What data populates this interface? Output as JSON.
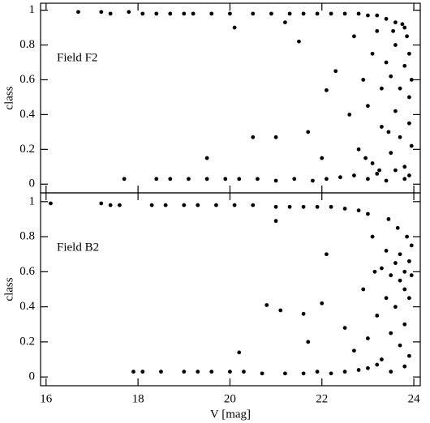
{
  "chart_data": [
    {
      "type": "scatter",
      "annotation": "Field F2",
      "ylabel": "class",
      "color": "#000000",
      "xlim": [
        15.88,
        24.14
      ],
      "ylim": [
        -0.05,
        1.04
      ],
      "yticks": [
        0,
        0.2,
        0.4,
        0.6,
        0.8,
        1
      ],
      "x": [
        16.7,
        17.2,
        17.4,
        17.8,
        18.1,
        18.4,
        18.7,
        19.0,
        19.2,
        19.6,
        20.0,
        20.5,
        20.9,
        21.3,
        21.6,
        21.9,
        22.2,
        22.5,
        22.8,
        23.0,
        23.2,
        23.4,
        23.6,
        23.8,
        17.7,
        18.4,
        18.7,
        19.1,
        19.5,
        19.9,
        20.2,
        20.6,
        21.0,
        21.4,
        21.8,
        22.1,
        22.4,
        22.7,
        23.0,
        23.2,
        23.4,
        23.6,
        23.8,
        23.9,
        19.5,
        20.5,
        21.0,
        20.1,
        21.2,
        21.5,
        21.7,
        22.0,
        22.1,
        22.3,
        22.6,
        22.7,
        22.8,
        22.9,
        23.0,
        23.1,
        23.1,
        23.2,
        23.3,
        23.3,
        23.4,
        23.5,
        23.5,
        23.6,
        23.6,
        23.7,
        23.7,
        23.8,
        23.8,
        23.9,
        23.9,
        23.9,
        23.95,
        23.95,
        23.85,
        23.75,
        23.55,
        23.45,
        23.25,
        22.95
      ],
      "values": [
        0.99,
        0.99,
        0.98,
        0.99,
        0.98,
        0.98,
        0.98,
        0.98,
        0.98,
        0.98,
        0.98,
        0.98,
        0.98,
        0.98,
        0.98,
        0.98,
        0.98,
        0.98,
        0.98,
        0.97,
        0.97,
        0.95,
        0.93,
        0.9,
        0.03,
        0.03,
        0.03,
        0.03,
        0.03,
        0.03,
        0.03,
        0.03,
        0.02,
        0.03,
        0.02,
        0.03,
        0.04,
        0.05,
        0.03,
        0.06,
        0.02,
        0.08,
        0.03,
        0.05,
        0.15,
        0.27,
        0.27,
        0.9,
        0.93,
        0.82,
        0.3,
        0.15,
        0.54,
        0.65,
        0.4,
        0.85,
        0.2,
        0.6,
        0.45,
        0.75,
        0.12,
        0.88,
        0.33,
        0.55,
        0.7,
        0.18,
        0.62,
        0.42,
        0.8,
        0.27,
        0.55,
        0.68,
        0.1,
        0.5,
        0.35,
        0.75,
        0.6,
        0.22,
        0.85,
        0.92,
        0.88,
        0.3,
        0.08,
        0.15
      ]
    },
    {
      "type": "scatter",
      "annotation": "Field B2",
      "ylabel": "class",
      "xlabel": "V [mag]",
      "color": "#000000",
      "xlim": [
        15.88,
        24.14
      ],
      "ylim": [
        -0.05,
        1.05
      ],
      "xticks": [
        16,
        18,
        20,
        22,
        24
      ],
      "yticks": [
        0,
        0.2,
        0.4,
        0.6,
        0.8,
        1
      ],
      "x": [
        16.1,
        17.2,
        17.4,
        17.6,
        18.3,
        18.6,
        19.0,
        19.3,
        19.7,
        20.1,
        20.5,
        21.0,
        21.3,
        21.6,
        21.9,
        22.2,
        22.5,
        22.8,
        23.0,
        17.9,
        18.1,
        18.5,
        19.0,
        19.3,
        19.6,
        20.0,
        20.3,
        20.7,
        21.2,
        21.6,
        21.9,
        22.2,
        22.5,
        22.8,
        23.0,
        23.2,
        23.5,
        23.8,
        20.2,
        20.8,
        21.0,
        21.1,
        21.6,
        21.7,
        22.0,
        22.1,
        22.5,
        22.7,
        22.9,
        23.0,
        23.1,
        23.2,
        23.3,
        23.3,
        23.4,
        23.4,
        23.5,
        23.5,
        23.6,
        23.6,
        23.7,
        23.7,
        23.7,
        23.8,
        23.8,
        23.8,
        23.9,
        23.9,
        23.9,
        23.95,
        23.95,
        23.85,
        23.65,
        23.45,
        23.15
      ],
      "values": [
        0.99,
        0.99,
        0.98,
        0.98,
        0.98,
        0.98,
        0.98,
        0.98,
        0.98,
        0.98,
        0.98,
        0.97,
        0.97,
        0.97,
        0.97,
        0.97,
        0.96,
        0.95,
        0.93,
        0.03,
        0.03,
        0.03,
        0.03,
        0.03,
        0.03,
        0.03,
        0.03,
        0.02,
        0.02,
        0.02,
        0.03,
        0.02,
        0.03,
        0.04,
        0.05,
        0.07,
        0.03,
        0.06,
        0.14,
        0.41,
        0.89,
        0.38,
        0.36,
        0.2,
        0.42,
        0.7,
        0.28,
        0.15,
        0.5,
        0.22,
        0.8,
        0.35,
        0.62,
        0.1,
        0.72,
        0.45,
        0.58,
        0.25,
        0.65,
        0.4,
        0.55,
        0.7,
        0.18,
        0.6,
        0.3,
        0.5,
        0.66,
        0.45,
        0.12,
        0.58,
        0.75,
        0.8,
        0.85,
        0.9,
        0.6
      ]
    }
  ]
}
